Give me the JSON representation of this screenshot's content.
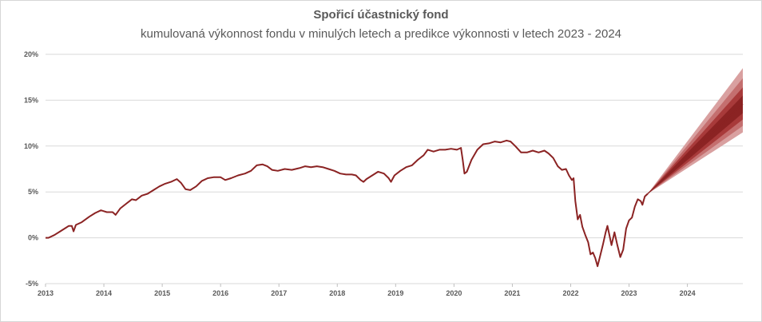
{
  "chart_data": {
    "type": "line",
    "title": "Spořicí účastnický fond",
    "subtitle": "kumulovaná výkonnost fondu v minulých letech a predikce výkonnosti v letech 2023 - 2024",
    "xlabel": "",
    "ylabel": "",
    "xlim": [
      2013.0,
      2024.95
    ],
    "ylim": [
      -5,
      20
    ],
    "x_ticks": [
      "2013",
      "2014",
      "2015",
      "2016",
      "2017",
      "2018",
      "2019",
      "2020",
      "2021",
      "2022",
      "2023",
      "2024"
    ],
    "y_ticks": [
      "-5%",
      "0%",
      "5%",
      "10%",
      "15%",
      "20%"
    ],
    "grid": "horizontal",
    "colors": {
      "line": "#8b2323",
      "fan_outer": "#d9a0a0",
      "fan_mid": "#c46f6f",
      "fan_inner": "#a83a3a",
      "fan_core": "#8b2323",
      "grid": "#d9d9d9"
    },
    "series": [
      {
        "values": [
          [
            2013.0,
            0.0
          ],
          [
            2013.05,
            0.0
          ],
          [
            2013.15,
            0.3
          ],
          [
            2013.25,
            0.7
          ],
          [
            2013.35,
            1.1
          ],
          [
            2013.4,
            1.3
          ],
          [
            2013.45,
            1.3
          ],
          [
            2013.48,
            0.7
          ],
          [
            2013.52,
            1.4
          ],
          [
            2013.62,
            1.7
          ],
          [
            2013.75,
            2.3
          ],
          [
            2013.85,
            2.7
          ],
          [
            2013.95,
            3.0
          ],
          [
            2014.05,
            2.8
          ],
          [
            2014.15,
            2.8
          ],
          [
            2014.2,
            2.5
          ],
          [
            2014.28,
            3.2
          ],
          [
            2014.38,
            3.7
          ],
          [
            2014.48,
            4.2
          ],
          [
            2014.55,
            4.1
          ],
          [
            2014.65,
            4.6
          ],
          [
            2014.75,
            4.8
          ],
          [
            2014.85,
            5.2
          ],
          [
            2014.95,
            5.6
          ],
          [
            2015.05,
            5.9
          ],
          [
            2015.15,
            6.1
          ],
          [
            2015.25,
            6.4
          ],
          [
            2015.32,
            6.0
          ],
          [
            2015.4,
            5.3
          ],
          [
            2015.48,
            5.2
          ],
          [
            2015.58,
            5.6
          ],
          [
            2015.68,
            6.2
          ],
          [
            2015.78,
            6.5
          ],
          [
            2015.88,
            6.6
          ],
          [
            2016.0,
            6.6
          ],
          [
            2016.08,
            6.3
          ],
          [
            2016.18,
            6.5
          ],
          [
            2016.3,
            6.8
          ],
          [
            2016.42,
            7.0
          ],
          [
            2016.52,
            7.3
          ],
          [
            2016.62,
            7.9
          ],
          [
            2016.72,
            8.0
          ],
          [
            2016.8,
            7.8
          ],
          [
            2016.88,
            7.4
          ],
          [
            2016.98,
            7.3
          ],
          [
            2017.1,
            7.5
          ],
          [
            2017.22,
            7.4
          ],
          [
            2017.35,
            7.6
          ],
          [
            2017.45,
            7.8
          ],
          [
            2017.55,
            7.7
          ],
          [
            2017.65,
            7.8
          ],
          [
            2017.75,
            7.7
          ],
          [
            2017.85,
            7.5
          ],
          [
            2017.95,
            7.3
          ],
          [
            2018.05,
            7.0
          ],
          [
            2018.15,
            6.9
          ],
          [
            2018.25,
            6.9
          ],
          [
            2018.32,
            6.8
          ],
          [
            2018.4,
            6.3
          ],
          [
            2018.45,
            6.1
          ],
          [
            2018.5,
            6.4
          ],
          [
            2018.6,
            6.8
          ],
          [
            2018.7,
            7.2
          ],
          [
            2018.8,
            7.0
          ],
          [
            2018.88,
            6.5
          ],
          [
            2018.92,
            6.1
          ],
          [
            2018.98,
            6.8
          ],
          [
            2019.08,
            7.3
          ],
          [
            2019.18,
            7.7
          ],
          [
            2019.28,
            7.9
          ],
          [
            2019.38,
            8.5
          ],
          [
            2019.48,
            9.0
          ],
          [
            2019.55,
            9.6
          ],
          [
            2019.65,
            9.4
          ],
          [
            2019.75,
            9.6
          ],
          [
            2019.85,
            9.6
          ],
          [
            2019.95,
            9.7
          ],
          [
            2020.05,
            9.6
          ],
          [
            2020.12,
            9.8
          ],
          [
            2020.15,
            8.5
          ],
          [
            2020.18,
            7.0
          ],
          [
            2020.22,
            7.2
          ],
          [
            2020.3,
            8.5
          ],
          [
            2020.4,
            9.6
          ],
          [
            2020.5,
            10.2
          ],
          [
            2020.6,
            10.3
          ],
          [
            2020.7,
            10.5
          ],
          [
            2020.8,
            10.4
          ],
          [
            2020.9,
            10.6
          ],
          [
            2020.97,
            10.5
          ],
          [
            2021.05,
            10.0
          ],
          [
            2021.15,
            9.3
          ],
          [
            2021.25,
            9.3
          ],
          [
            2021.35,
            9.5
          ],
          [
            2021.45,
            9.3
          ],
          [
            2021.55,
            9.5
          ],
          [
            2021.62,
            9.2
          ],
          [
            2021.7,
            8.7
          ],
          [
            2021.78,
            7.8
          ],
          [
            2021.85,
            7.4
          ],
          [
            2021.92,
            7.5
          ],
          [
            2021.97,
            6.8
          ],
          [
            2022.02,
            6.3
          ],
          [
            2022.05,
            6.5
          ],
          [
            2022.08,
            4.0
          ],
          [
            2022.12,
            2.0
          ],
          [
            2022.16,
            2.5
          ],
          [
            2022.2,
            1.2
          ],
          [
            2022.25,
            0.3
          ],
          [
            2022.3,
            -0.5
          ],
          [
            2022.34,
            -1.8
          ],
          [
            2022.38,
            -1.6
          ],
          [
            2022.42,
            -2.2
          ],
          [
            2022.46,
            -3.1
          ],
          [
            2022.5,
            -2.1
          ],
          [
            2022.55,
            -0.8
          ],
          [
            2022.6,
            0.6
          ],
          [
            2022.63,
            1.3
          ],
          [
            2022.66,
            0.4
          ],
          [
            2022.7,
            -0.8
          ],
          [
            2022.75,
            0.6
          ],
          [
            2022.8,
            -0.8
          ],
          [
            2022.85,
            -2.1
          ],
          [
            2022.9,
            -1.3
          ],
          [
            2022.95,
            1.0
          ],
          [
            2023.0,
            1.9
          ],
          [
            2023.05,
            2.2
          ],
          [
            2023.1,
            3.4
          ],
          [
            2023.15,
            4.2
          ],
          [
            2023.2,
            4.0
          ],
          [
            2023.23,
            3.6
          ],
          [
            2023.27,
            4.5
          ],
          [
            2023.32,
            4.8
          ]
        ]
      }
    ],
    "forecast": {
      "start": [
        2023.32,
        4.8
      ],
      "end_x": 2024.95,
      "bands_end": [
        [
          11.5,
          18.5
        ],
        [
          12.2,
          17.4
        ],
        [
          12.9,
          16.4
        ],
        [
          13.6,
          15.5
        ]
      ],
      "median_end": 14.6
    }
  }
}
